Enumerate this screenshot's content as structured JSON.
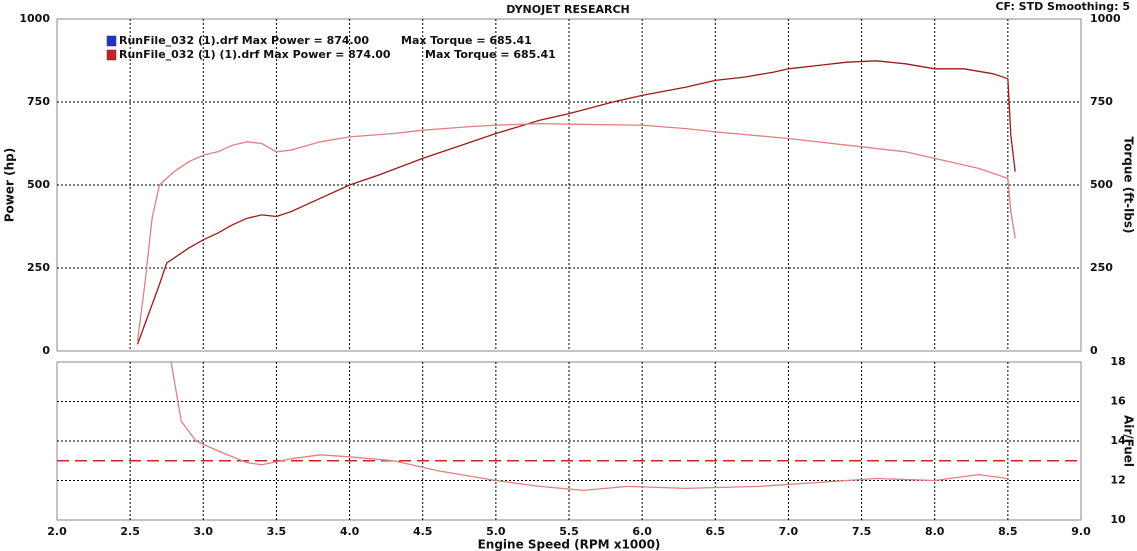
{
  "header": {
    "title": "DYNOJET RESEARCH",
    "settings": "CF: STD  Smoothing: 5"
  },
  "chart_data": [
    {
      "type": "line",
      "ylabel": "Power (hp)",
      "y2label": "Torque (ft-lbs)",
      "legend": [
        {
          "label": "RunFile_032 (1).drf Max Power = 874.00",
          "extra": "Max Torque = 685.41",
          "color": "#2233cc"
        },
        {
          "label": "RunFile_032 (1) (1).drf Max Power = 874.00",
          "extra": "Max Torque = 685.41",
          "color": "#cc2222"
        }
      ],
      "xlim": [
        2,
        9
      ],
      "xticks": [
        2,
        2.5,
        3,
        3.5,
        4,
        4.5,
        5,
        5.5,
        6,
        6.5,
        7,
        7.5,
        8,
        8.5,
        9
      ],
      "ylim": [
        0,
        1000
      ],
      "yticks": [
        0,
        250,
        500,
        750,
        1000
      ],
      "y2lim": [
        0,
        1000
      ],
      "y2ticks": [
        0,
        250,
        500,
        750,
        1000
      ],
      "grid": true,
      "series": [
        {
          "color": "#a01818",
          "x": [
            2.55,
            2.6,
            2.7,
            2.75,
            2.9,
            3.0,
            3.1,
            3.2,
            3.3,
            3.4,
            3.5,
            3.6,
            3.8,
            4.0,
            4.2,
            4.5,
            4.8,
            5.0,
            5.3,
            5.5,
            5.8,
            6.0,
            6.3,
            6.5,
            6.7,
            6.9,
            7.0,
            7.2,
            7.4,
            7.6,
            7.8,
            8.0,
            8.2,
            8.4,
            8.5,
            8.52,
            8.55
          ],
          "values": [
            20,
            80,
            200,
            265,
            310,
            335,
            355,
            380,
            400,
            410,
            405,
            420,
            460,
            500,
            530,
            580,
            625,
            655,
            695,
            715,
            750,
            770,
            795,
            815,
            825,
            840,
            850,
            860,
            870,
            874,
            865,
            850,
            850,
            835,
            820,
            650,
            540
          ]
        },
        {
          "color": "#e08080",
          "axis": "y2",
          "x": [
            2.55,
            2.6,
            2.65,
            2.7,
            2.8,
            2.9,
            3.0,
            3.1,
            3.2,
            3.3,
            3.4,
            3.5,
            3.6,
            3.8,
            4.0,
            4.3,
            4.5,
            4.8,
            5.0,
            5.3,
            5.5,
            6.0,
            6.3,
            6.5,
            7.0,
            7.5,
            7.8,
            8.0,
            8.3,
            8.5,
            8.52,
            8.55
          ],
          "values": [
            30,
            200,
            400,
            500,
            540,
            570,
            590,
            600,
            620,
            630,
            625,
            600,
            605,
            630,
            645,
            655,
            665,
            675,
            680,
            685,
            683,
            680,
            670,
            660,
            640,
            615,
            600,
            580,
            550,
            520,
            420,
            340
          ]
        }
      ]
    },
    {
      "type": "line",
      "xlabel": "Engine Speed (RPM x1000)",
      "ylabel": "Air/Fuel",
      "xlim": [
        2,
        9
      ],
      "xticks": [
        {
          "value": 2,
          "label": "2.0"
        },
        {
          "value": 2.5,
          "label": "2.5"
        },
        {
          "value": 3,
          "label": "3.0"
        },
        {
          "value": 3.5,
          "label": "3.5"
        },
        {
          "value": 4,
          "label": "4.0"
        },
        {
          "value": 4.5,
          "label": "4.5"
        },
        {
          "value": 5,
          "label": "5.0"
        },
        {
          "value": 5.5,
          "label": "5.5"
        },
        {
          "value": 6,
          "label": "6.0"
        },
        {
          "value": 6.5,
          "label": "6.5"
        },
        {
          "value": 7,
          "label": "7.0"
        },
        {
          "value": 7.5,
          "label": "7.5"
        },
        {
          "value": 8,
          "label": "8.0"
        },
        {
          "value": 8.5,
          "label": "8.5"
        },
        {
          "value": 9,
          "label": "9.0"
        }
      ],
      "ylim": [
        10,
        18
      ],
      "yticks": [
        10,
        12,
        14,
        16,
        18
      ],
      "grid": true,
      "reference_line": {
        "value": 13,
        "color": "#cc2222"
      },
      "series": [
        {
          "color": "#e08080",
          "x": [
            2.78,
            2.85,
            2.95,
            3.1,
            3.3,
            3.4,
            3.6,
            3.8,
            4.0,
            4.3,
            4.6,
            5.0,
            5.3,
            5.6,
            5.9,
            6.3,
            6.8,
            7.2,
            7.6,
            8.0,
            8.3,
            8.5
          ],
          "values": [
            18,
            15,
            14,
            13.5,
            12.9,
            12.8,
            13.1,
            13.3,
            13.2,
            13.0,
            12.5,
            12.0,
            11.7,
            11.5,
            11.7,
            11.6,
            11.7,
            11.9,
            12.1,
            12.0,
            12.3,
            12.1
          ]
        }
      ]
    }
  ]
}
